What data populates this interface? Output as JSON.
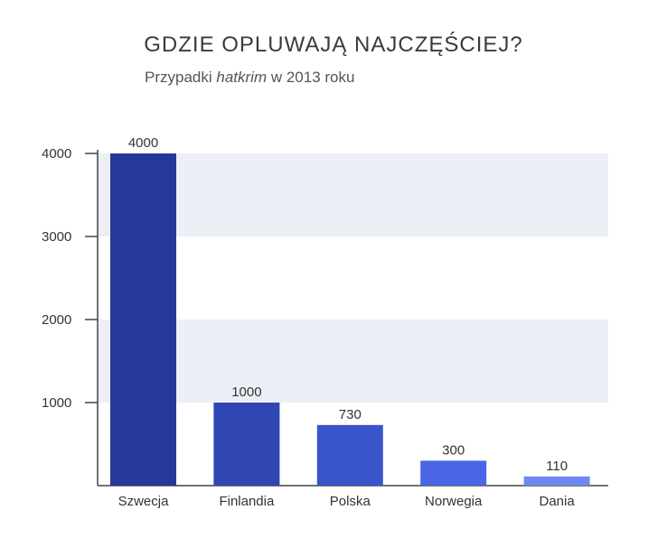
{
  "chart_data": {
    "type": "bar",
    "title": "GDZIE OPLUWAJĄ NAJCZĘŚCIEJ?",
    "subtitle_prefix": "Przypadki ",
    "subtitle_italic": "hatkrim",
    "subtitle_suffix": " w 2013 roku",
    "categories": [
      "Szwecja",
      "Finlandia",
      "Polska",
      "Norwegia",
      "Dania"
    ],
    "values": [
      4000,
      1000,
      730,
      300,
      110
    ],
    "value_labels": [
      "4000",
      "1000",
      "730",
      "300",
      "110"
    ],
    "yticks": [
      1000,
      2000,
      3000,
      4000
    ],
    "ytick_labels": [
      "1000",
      "2000",
      "3000",
      "4000"
    ],
    "ylim": [
      0,
      4000
    ],
    "xlabel": "",
    "ylabel": "",
    "bar_colors": [
      "#27389a",
      "#2f46b3",
      "#3a55cc",
      "#4a66e6",
      "#6d88f0"
    ],
    "band_color": "#eceff6",
    "axis_color": "#444444"
  }
}
